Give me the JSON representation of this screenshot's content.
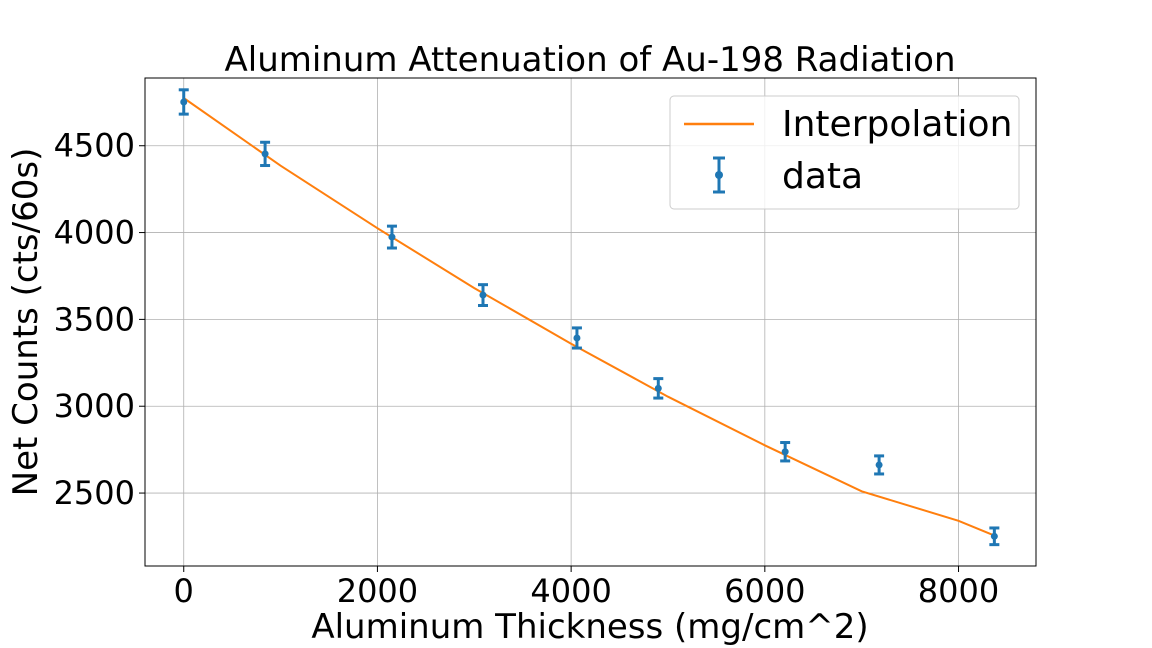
{
  "chart_data": {
    "type": "scatter",
    "title": "Aluminum Attenuation of Au-198 Radiation",
    "xlabel": "Aluminum Thickness (mg/cm^2)",
    "ylabel": "Net Counts (cts/60s)",
    "xlim": [
      -400,
      8800
    ],
    "ylim": [
      2080,
      4890
    ],
    "xticks": [
      0,
      2000,
      4000,
      6000,
      8000
    ],
    "yticks": [
      2500,
      3000,
      3500,
      4000,
      4500
    ],
    "grid": true,
    "legend_position": "top-right",
    "colors": {
      "data": "#1f77b4",
      "interpolation": "#ff7f0e"
    },
    "series": [
      {
        "name": "data",
        "kind": "errorbar",
        "x": [
          0,
          840,
          2150,
          3090,
          4060,
          4900,
          6210,
          7180,
          8370
        ],
        "y": [
          4752,
          4453,
          3974,
          3640,
          3393,
          3103,
          2738,
          2662,
          2251
        ],
        "yerr": [
          70,
          67,
          63,
          60,
          58,
          56,
          53,
          52,
          48
        ]
      },
      {
        "name": "Interpolation",
        "kind": "line",
        "x": [
          0,
          1000,
          2000,
          3000,
          4000,
          5000,
          6000,
          7000,
          8000,
          8370
        ],
        "y": [
          4775,
          4385,
          4025,
          3680,
          3360,
          3055,
          2775,
          2510,
          2340,
          2255
        ]
      }
    ]
  }
}
